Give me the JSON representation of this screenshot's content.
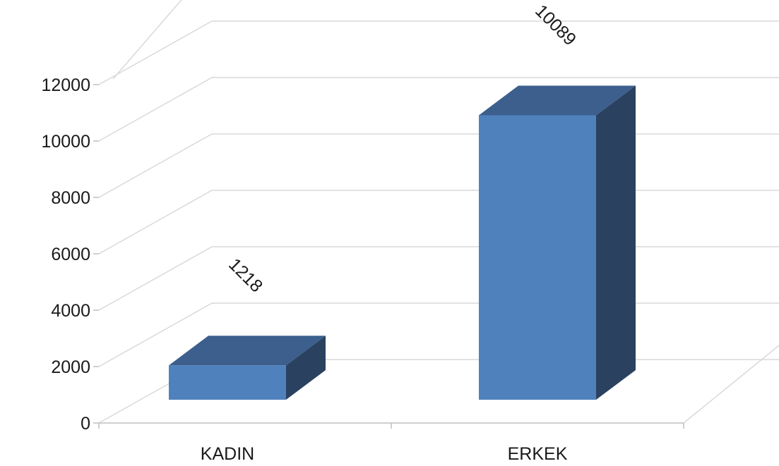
{
  "chart_data": {
    "type": "bar",
    "categories": [
      "KADIN",
      "ERKEK"
    ],
    "values": [
      1218,
      10089
    ],
    "data_labels": [
      "1218",
      "10089"
    ],
    "title": "",
    "xlabel": "",
    "ylabel": "",
    "ylim": [
      0,
      12000
    ],
    "yticks": [
      "0",
      "2000",
      "4000",
      "6000",
      "8000",
      "10000",
      "12000"
    ],
    "grid": true,
    "legend": "none",
    "three_d": true,
    "colors": {
      "front": "#4f81bd",
      "top": "#3c5f8d",
      "side": "#2a4260",
      "grid": "#d9d9d9",
      "axis": "#bfbfbf"
    }
  }
}
